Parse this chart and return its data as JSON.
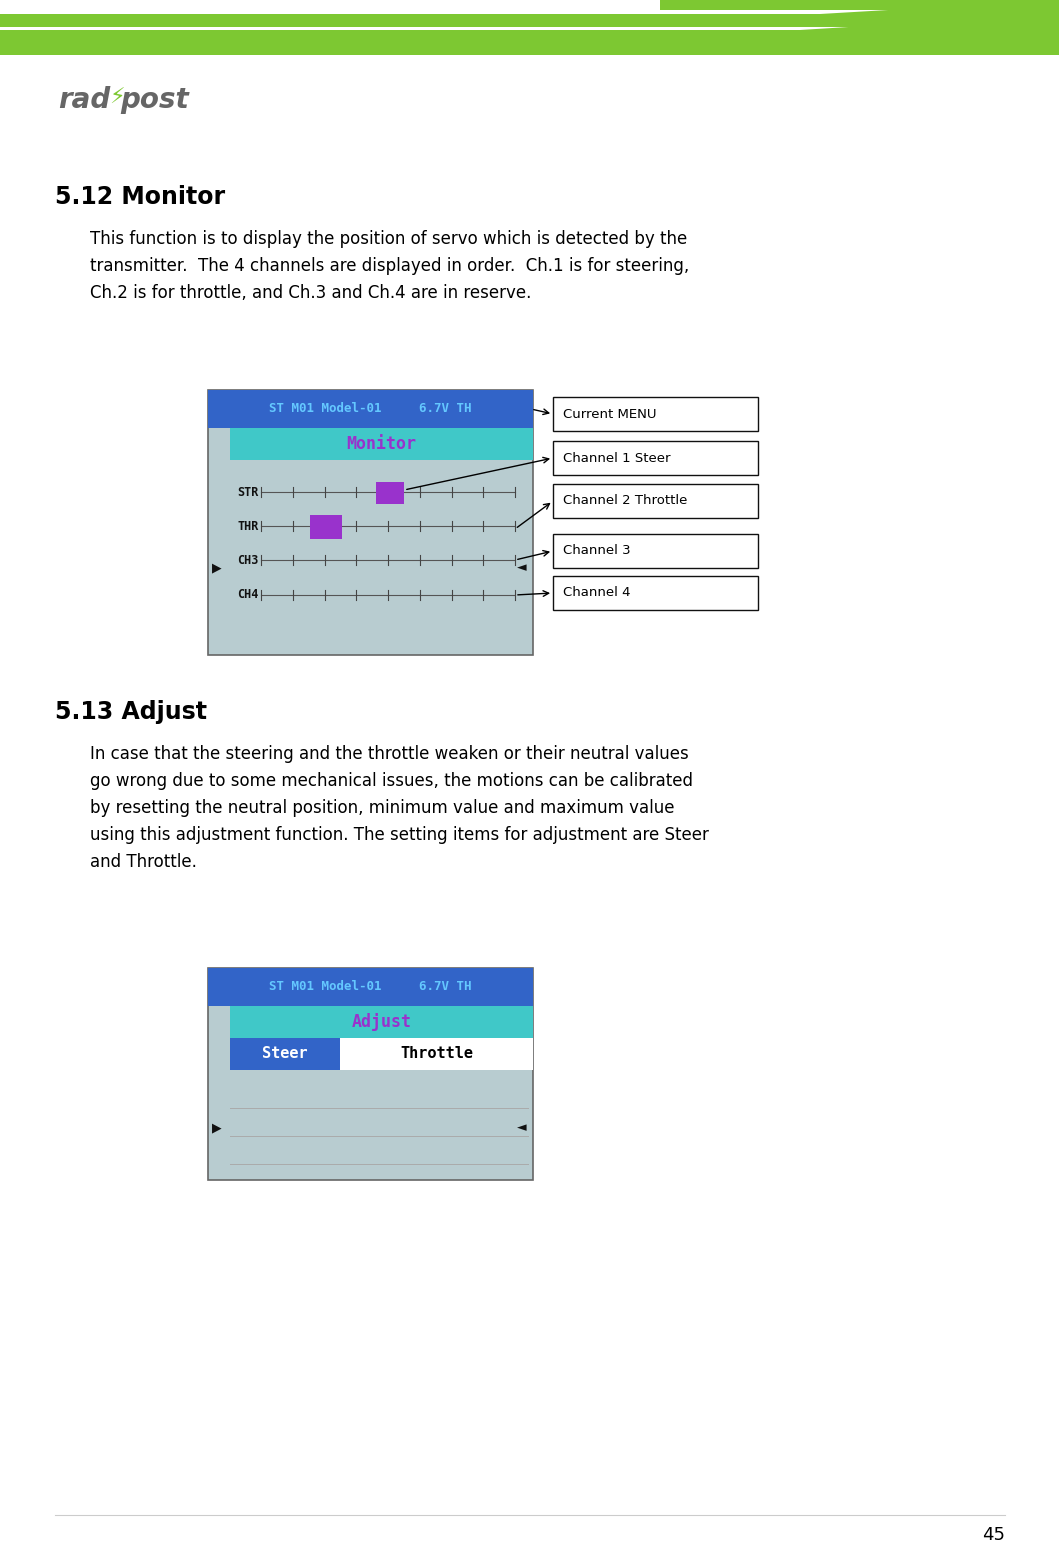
{
  "bg_color": "#ffffff",
  "green_color": "#7dc832",
  "section1_title": "5.12 Monitor",
  "section1_body_lines": [
    "This function is to display the position of servo which is detected by the",
    "transmitter.  The 4 channels are displayed in order.  Ch.1 is for steering,",
    "Ch.2 is for throttle, and Ch.3 and Ch.4 are in reserve."
  ],
  "screen1_header_color": "#3264c8",
  "screen1_header_text": "ST M01 Model-01     6.7V TH",
  "screen1_header_text_color": "#64c8ff",
  "screen1_title_bg": "#40c8c8",
  "screen1_title_text": "Monitor",
  "screen1_title_text_color": "#9932cc",
  "screen1_bg": "#b8ccd0",
  "screen1_rows": [
    "STR",
    "THR",
    "CH3",
    "CH4"
  ],
  "steer_box_color": "#9932cc",
  "throttle_box_color": "#9932cc",
  "callout_labels": [
    "Current MENU",
    "Channel 1 Steer",
    "Channel 2 Throttle",
    "Channel 3",
    "Channel 4"
  ],
  "section2_title": "5.13 Adjust",
  "section2_body_lines": [
    "In case that the steering and the throttle weaken or their neutral values",
    "go wrong due to some mechanical issues, the motions can be calibrated",
    "by resetting the neutral position, minimum value and maximum value",
    "using this adjustment function. The setting items for adjustment are Steer",
    "and Throttle."
  ],
  "screen2_header_color": "#3264c8",
  "screen2_header_text": "ST M01 Model-01     6.7V TH",
  "screen2_header_text_color": "#64c8ff",
  "screen2_title_bg": "#40c8c8",
  "screen2_title_text": "Adjust",
  "screen2_title_text_color": "#9932cc",
  "screen2_bg": "#b8ccd0",
  "screen2_steer_bg": "#3264c8",
  "screen2_steer_text": "Steer",
  "screen2_throttle_text": "Throttle",
  "page_number": "45",
  "logo_color": "#666666",
  "logo_green": "#7dc832"
}
